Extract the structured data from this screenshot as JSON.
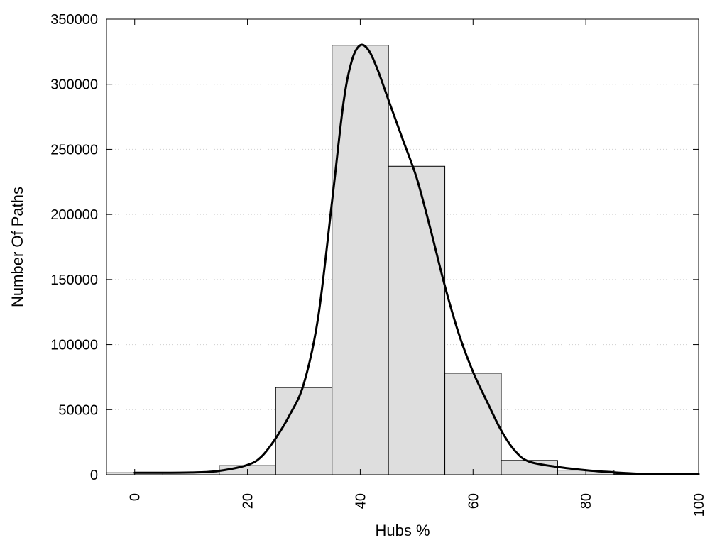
{
  "chart_data": {
    "type": "bar",
    "title": "",
    "xlabel": "Hubs %",
    "ylabel": "Number Of Paths",
    "xlim": [
      -5,
      100
    ],
    "ylim": [
      0,
      350000
    ],
    "xticks": [
      "0",
      "20",
      "40",
      "60",
      "80",
      "100"
    ],
    "yticks": [
      "0",
      "50000",
      "100000",
      "150000",
      "200000",
      "250000",
      "300000",
      "350000"
    ],
    "grid": "horizontal dotted",
    "bar_width": 10,
    "bars": [
      {
        "x": 0,
        "value": 1500
      },
      {
        "x": 10,
        "value": 1500
      },
      {
        "x": 20,
        "value": 7000
      },
      {
        "x": 30,
        "value": 67000
      },
      {
        "x": 40,
        "value": 330000
      },
      {
        "x": 50,
        "value": 237000
      },
      {
        "x": 60,
        "value": 78000
      },
      {
        "x": 70,
        "value": 11000
      },
      {
        "x": 80,
        "value": 3500
      },
      {
        "x": 90,
        "value": 600
      }
    ],
    "curve": {
      "type": "line",
      "x": [
        0,
        10,
        15,
        20,
        22.5,
        25,
        27.5,
        30,
        32.5,
        35,
        37,
        38.5,
        40,
        41.5,
        43,
        45,
        47.5,
        50,
        52.5,
        55,
        57.5,
        60,
        62.5,
        65,
        67.5,
        70,
        75,
        80,
        85,
        90,
        95,
        100
      ],
      "y": [
        1500,
        1700,
        3000,
        7500,
        14000,
        28000,
        46000,
        70000,
        120000,
        210000,
        285000,
        318000,
        330000,
        326000,
        312000,
        288000,
        258000,
        228000,
        188000,
        145000,
        108000,
        79000,
        56000,
        34000,
        18000,
        10000,
        6000,
        3500,
        1800,
        700,
        300,
        500
      ]
    },
    "colors": {
      "bar_fill": "#dedede",
      "bar_stroke": "#000000",
      "curve": "#000000"
    }
  }
}
